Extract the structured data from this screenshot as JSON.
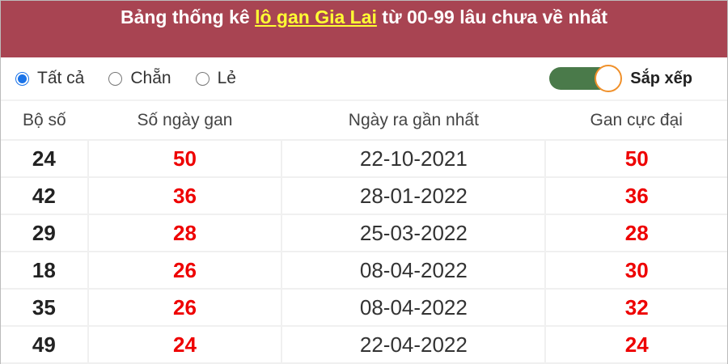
{
  "header": {
    "title_prefix": "Bảng thống kê ",
    "title_link": "lô gan Gia Lai",
    "title_suffix": " từ 00-99 lâu chưa về nhất"
  },
  "filters": {
    "options": [
      {
        "label": "Tất cả",
        "selected": true
      },
      {
        "label": "Chẵn",
        "selected": false
      },
      {
        "label": "Lẻ",
        "selected": false
      }
    ],
    "sort_label": "Sắp xếp",
    "sort_on": true
  },
  "table": {
    "columns": [
      "Bộ số",
      "Số ngày gan",
      "Ngày ra gần nhất",
      "Gan cực đại"
    ],
    "rows": [
      [
        "24",
        "50",
        "22-10-2021",
        "50"
      ],
      [
        "42",
        "36",
        "28-01-2022",
        "36"
      ],
      [
        "29",
        "28",
        "25-03-2022",
        "28"
      ],
      [
        "18",
        "26",
        "08-04-2022",
        "30"
      ],
      [
        "35",
        "26",
        "08-04-2022",
        "32"
      ],
      [
        "49",
        "24",
        "22-04-2022",
        "24"
      ]
    ]
  },
  "colors": {
    "header_bg": "#a84452",
    "link": "#ffff33",
    "value_red": "#e00000",
    "toggle_on": "#4a7a4a"
  }
}
